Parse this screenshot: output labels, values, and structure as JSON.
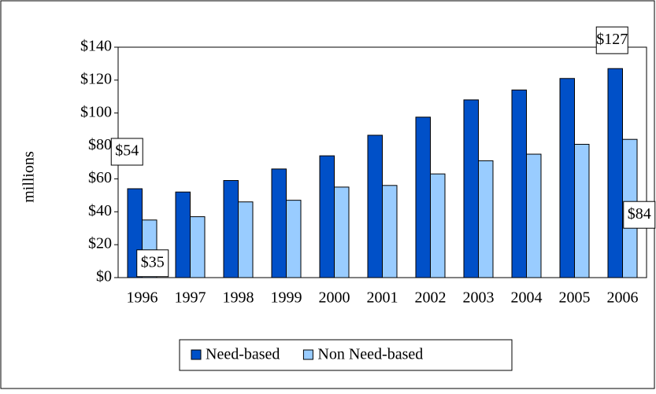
{
  "chart_data": {
    "type": "bar",
    "y_label": "millions",
    "categories": [
      "1996",
      "1997",
      "1998",
      "1999",
      "2000",
      "2001",
      "2002",
      "2003",
      "2004",
      "2005",
      "2006"
    ],
    "series": [
      {
        "name": "Need-based",
        "color": "#0050c8",
        "values": [
          54,
          52,
          59,
          66,
          74,
          86.5,
          97.5,
          108,
          114,
          121,
          127
        ],
        "value_labels": [
          "$54",
          null,
          null,
          null,
          null,
          null,
          null,
          null,
          null,
          null,
          "$127"
        ]
      },
      {
        "name": "Non Need-based",
        "color": "#99ccff",
        "values": [
          35,
          37,
          46,
          47,
          55,
          56,
          63,
          71,
          75,
          81,
          84
        ],
        "value_labels": [
          "$35",
          null,
          null,
          null,
          null,
          null,
          null,
          null,
          null,
          null,
          "$84"
        ]
      }
    ],
    "ylim": [
      0,
      140
    ],
    "yticks": [
      {
        "value": 0,
        "label": "$0"
      },
      {
        "value": 20,
        "label": "$20"
      },
      {
        "value": 40,
        "label": "$40"
      },
      {
        "value": 60,
        "label": "$60"
      },
      {
        "value": 80,
        "label": "$80"
      },
      {
        "value": 100,
        "label": "$100"
      },
      {
        "value": 120,
        "label": "$120"
      },
      {
        "value": 140,
        "label": "$140"
      }
    ],
    "legend": "bottom"
  }
}
